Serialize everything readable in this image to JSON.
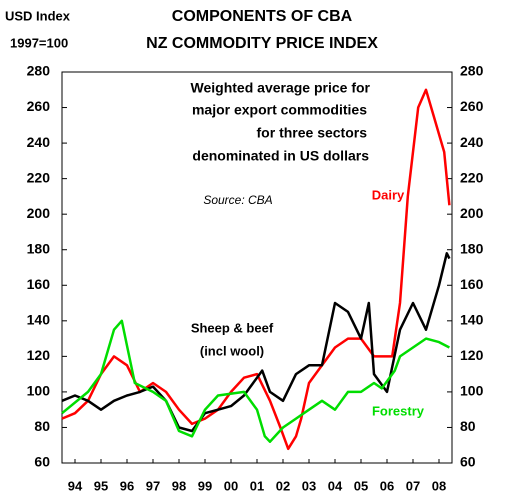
{
  "chart_data": {
    "type": "line",
    "title": [
      "COMPONENTS OF CBA",
      "NZ COMMODITY PRICE INDEX"
    ],
    "y_axis_label": [
      "USD Index",
      "1997=100"
    ],
    "annotation": [
      "Weighted average price for",
      "major export commodities",
      "for three sectors",
      "denominated in US dollars"
    ],
    "source": "Source: CBA",
    "xlim": [
      1994,
      2009
    ],
    "xticks": [
      {
        "value": 1994.5,
        "label": "94"
      },
      {
        "value": 1995.5,
        "label": "95"
      },
      {
        "value": 1996.5,
        "label": "96"
      },
      {
        "value": 1997.5,
        "label": "97"
      },
      {
        "value": 1998.5,
        "label": "98"
      },
      {
        "value": 1999.5,
        "label": "99"
      },
      {
        "value": 2000.5,
        "label": "00"
      },
      {
        "value": 2001.5,
        "label": "01"
      },
      {
        "value": 2002.5,
        "label": "02"
      },
      {
        "value": 2003.5,
        "label": "03"
      },
      {
        "value": 2004.5,
        "label": "04"
      },
      {
        "value": 2005.5,
        "label": "05"
      },
      {
        "value": 2006.5,
        "label": "06"
      },
      {
        "value": 2007.5,
        "label": "07"
      },
      {
        "value": 2008.5,
        "label": "08"
      }
    ],
    "ylim": [
      60,
      280
    ],
    "yticks": [
      60,
      80,
      100,
      120,
      140,
      160,
      180,
      200,
      220,
      240,
      260,
      280
    ],
    "y2lim": [
      60,
      280
    ],
    "y2ticks": [
      60,
      80,
      100,
      120,
      140,
      160,
      180,
      200,
      220,
      240,
      260,
      280
    ],
    "series": [
      {
        "name": [
          "Dairy"
        ],
        "color": "#ff0000",
        "x": [
          1994,
          1994.5,
          1995,
          1995.5,
          1996,
          1996.5,
          1997,
          1997.5,
          1998,
          1998.5,
          1999,
          1999.5,
          2000,
          2000.5,
          2001,
          2001.5,
          2002,
          2002.4,
          2002.7,
          2003,
          2003.2,
          2003.5,
          2004,
          2004.5,
          2005,
          2005.5,
          2006,
          2006.4,
          2006.7,
          2007,
          2007.3,
          2007.7,
          2008,
          2008.3,
          2008.7,
          2008.9
        ],
        "values": [
          85,
          88,
          95,
          110,
          120,
          115,
          100,
          105,
          100,
          90,
          82,
          85,
          90,
          100,
          108,
          110,
          95,
          80,
          68,
          75,
          85,
          105,
          115,
          125,
          130,
          130,
          120,
          120,
          120,
          150,
          210,
          260,
          270,
          255,
          235,
          205
        ]
      },
      {
        "name": [
          "Sheep & beef",
          "(incl wool)"
        ],
        "color": "#000000",
        "x": [
          1994,
          1994.5,
          1995,
          1995.5,
          1996,
          1996.5,
          1997,
          1997.5,
          1998,
          1998.5,
          1999,
          1999.5,
          2000,
          2000.5,
          2001,
          2001.7,
          2002,
          2002.5,
          2003,
          2003.5,
          2004,
          2004.5,
          2005,
          2005.5,
          2005.8,
          2006,
          2006.5,
          2007,
          2007.5,
          2008,
          2008.5,
          2008.8,
          2008.9
        ],
        "values": [
          95,
          98,
          95,
          90,
          95,
          98,
          100,
          103,
          95,
          80,
          78,
          88,
          90,
          92,
          98,
          112,
          100,
          95,
          110,
          115,
          115,
          150,
          145,
          130,
          150,
          110,
          100,
          135,
          150,
          135,
          160,
          178,
          175
        ]
      },
      {
        "name": [
          "Forestry"
        ],
        "color": "#00dd00",
        "x": [
          1994,
          1995,
          1995.5,
          1996,
          1996.3,
          1996.8,
          1997.5,
          1998,
          1998.5,
          1999,
          1999.5,
          2000,
          2001,
          2001.5,
          2001.8,
          2002,
          2002.5,
          2003,
          2003.5,
          2004,
          2004.5,
          2005,
          2005.5,
          2006,
          2006.3,
          2006.8,
          2007,
          2007.5,
          2008,
          2008.5,
          2008.9
        ],
        "values": [
          88,
          100,
          110,
          135,
          140,
          105,
          100,
          95,
          78,
          75,
          90,
          98,
          100,
          90,
          75,
          72,
          80,
          85,
          90,
          95,
          90,
          100,
          100,
          105,
          102,
          112,
          120,
          125,
          130,
          128,
          125
        ]
      }
    ]
  }
}
